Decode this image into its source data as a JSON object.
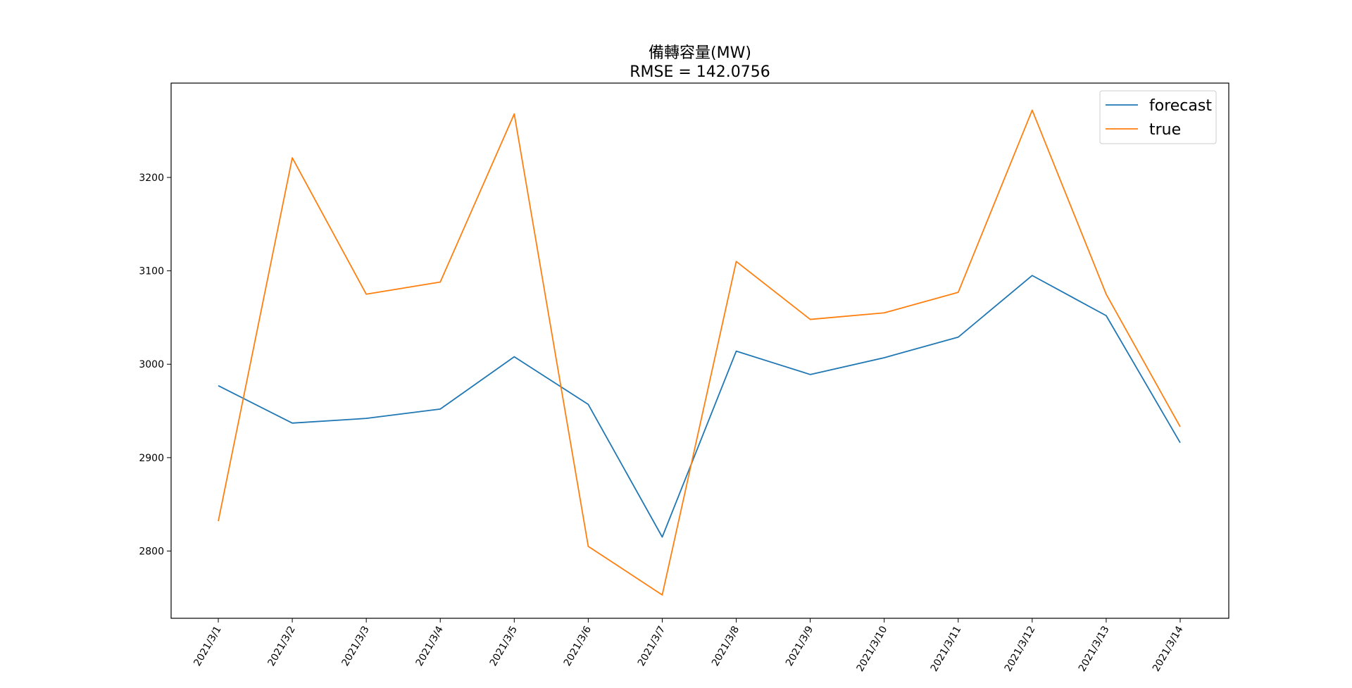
{
  "chart_data": {
    "type": "line",
    "title": "備轉容量(MW)",
    "subtitle": "RMSE = 142.0756",
    "xlabel": "",
    "ylabel": "",
    "categories": [
      "2021/3/1",
      "2021/3/2",
      "2021/3/3",
      "2021/3/4",
      "2021/3/5",
      "2021/3/6",
      "2021/3/7",
      "2021/3/8",
      "2021/3/9",
      "2021/3/10",
      "2021/3/11",
      "2021/3/12",
      "2021/3/13",
      "2021/3/14"
    ],
    "ylim": [
      2728,
      3301
    ],
    "yticks": [
      2800,
      2900,
      3000,
      3100,
      3200
    ],
    "grid": false,
    "legend_position": "top-right",
    "series": [
      {
        "name": "forecast",
        "color": "#1f77b4",
        "values": [
          2977,
          2937,
          2942,
          2952,
          3008,
          2957,
          2815,
          3014,
          2989,
          3007,
          3029,
          3095,
          3052,
          2916
        ]
      },
      {
        "name": "true",
        "color": "#ff7f0e",
        "values": [
          2832,
          3221,
          3075,
          3088,
          3268,
          2805,
          2753,
          3110,
          3048,
          3055,
          3077,
          3272,
          3075,
          2933
        ]
      }
    ]
  }
}
